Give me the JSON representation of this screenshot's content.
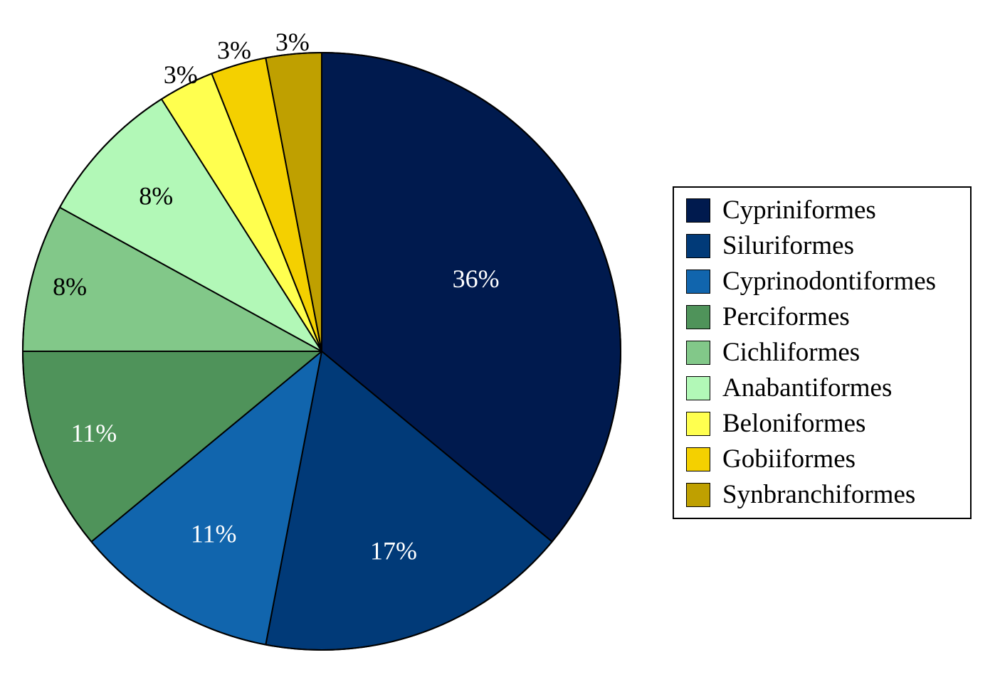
{
  "chart_data": {
    "type": "pie",
    "start_angle_deg": 0,
    "direction": "clockwise",
    "slices": [
      {
        "label": "Cypriniformes",
        "value": 36,
        "value_label": "36%",
        "color": "#001a4e",
        "label_color": "#ffffff"
      },
      {
        "label": "Siluriformes",
        "value": 17,
        "value_label": "17%",
        "color": "#013a78",
        "label_color": "#ffffff"
      },
      {
        "label": "Cyprinodontiformes",
        "value": 11,
        "value_label": "11%",
        "color": "#1165ad",
        "label_color": "#ffffff"
      },
      {
        "label": "Perciformes",
        "value": 11,
        "value_label": "11%",
        "color": "#4f935a",
        "label_color": "#ffffff"
      },
      {
        "label": "Cichliformes",
        "value": 8,
        "value_label": "8%",
        "color": "#82c889",
        "label_color": "#000000"
      },
      {
        "label": "Anabantiformes",
        "value": 8,
        "value_label": "8%",
        "color": "#b2f8b7",
        "label_color": "#000000"
      },
      {
        "label": "Beloniformes",
        "value": 3,
        "value_label": "3%",
        "color": "#ffff4f",
        "label_color": "#000000"
      },
      {
        "label": "Gobiiformes",
        "value": 3,
        "value_label": "3%",
        "color": "#f4d000",
        "label_color": "#000000"
      },
      {
        "label": "Synbranchiformes",
        "value": 3,
        "value_label": "3%",
        "color": "#bfa000",
        "label_color": "#000000"
      }
    ],
    "legend_position": "right"
  }
}
